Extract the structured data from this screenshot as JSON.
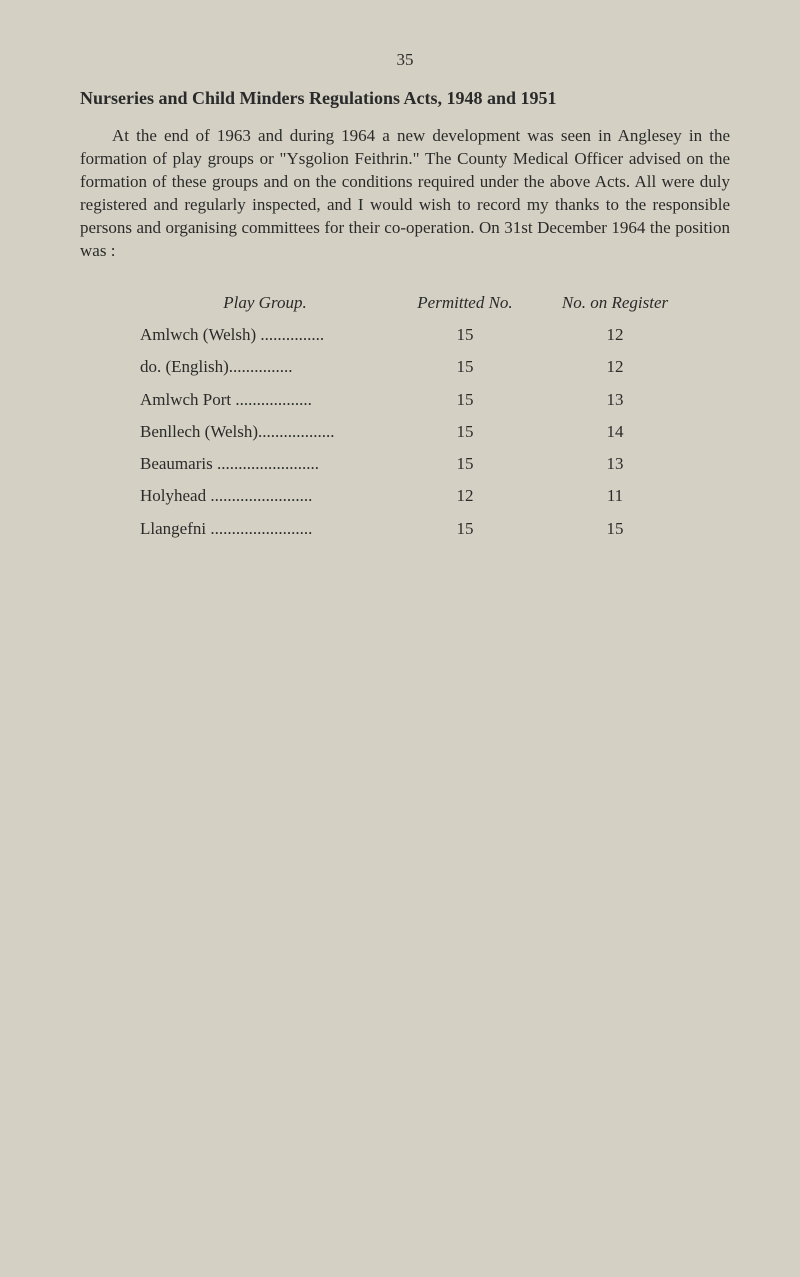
{
  "page_number": "35",
  "heading": "Nurseries and Child Minders Regulations Acts, 1948 and 1951",
  "body_text": "At the end of 1963 and during 1964 a new development was seen in Anglesey in the formation of play groups or \"Ysgolion Feithrin.\" The County Medical Officer advised on the formation of these groups and on the conditions required under the above Acts. All were duly registered and regularly inspected, and I would wish to record my thanks to the responsible persons and organising committees for their co-operation. On 31st December 1964 the position was :",
  "table": {
    "headers": {
      "play_group": "Play Group.",
      "permitted": "Permitted No.",
      "register": "No. on Register"
    },
    "rows": [
      {
        "name": "Amlwch (Welsh) ...............",
        "permitted": "15",
        "register": "12"
      },
      {
        "name": "   do.    (English)...............",
        "permitted": "15",
        "register": "12"
      },
      {
        "name": "Amlwch Port   ..................",
        "permitted": "15",
        "register": "13"
      },
      {
        "name": "Benllech (Welsh)..................",
        "permitted": "15",
        "register": "14"
      },
      {
        "name": "Beaumaris  ........................",
        "permitted": "15",
        "register": "13"
      },
      {
        "name": "Holyhead   ........................",
        "permitted": "12",
        "register": "11"
      },
      {
        "name": "Llangefni   ........................",
        "permitted": "15",
        "register": "15"
      }
    ]
  },
  "colors": {
    "background": "#d4d1c4",
    "text": "#2a2a2a"
  },
  "typography": {
    "body_fontsize": 17,
    "heading_fontsize": 18,
    "font_family": "Georgia, Times New Roman, serif"
  }
}
